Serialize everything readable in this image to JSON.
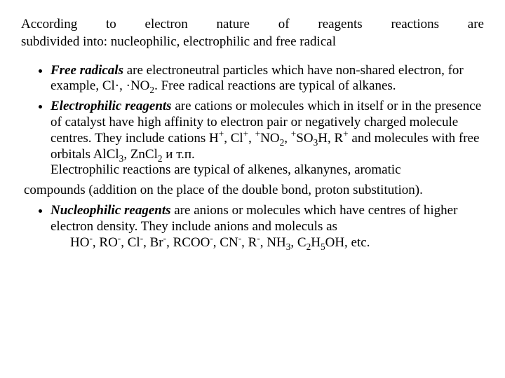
{
  "heading": {
    "line1": "According to electron nature of reagents reactions are",
    "line2": "subdivided into: nucleophilic, electrophilic and free radical"
  },
  "bullets": {
    "free_radicals": {
      "term": "Free radicals",
      "text1": " are electroneutral particles which have non-shared electron, for example, Cl·,  ·NO",
      "sub1": "2",
      "text2": ". Free radical reactions are typical of alkanes."
    },
    "electrophilic": {
      "term": "Electrophilic reagents",
      "text1": " are cations or molecules which in itself or in the presence of catalyst have high affinity to electron pair or negatively charged molecule centres. They include cations H",
      "sup1": "+",
      "text2": ", Cl",
      "sup2": "+",
      "text3": ", ",
      "sup3": "+",
      "text4": "NO",
      "sub1": "2",
      "text5": ", ",
      "sup4": "+",
      "text6": "SO",
      "sub2": "3",
      "text7": "H, R",
      "sup5": "+",
      "text8": " and molecules with free orbitals AlCl",
      "sub3": "3",
      "text9": ", ZnCl",
      "sub4": "2",
      "text10": " и т.п.",
      "line2": "Electrophilic reactions are typical of alkenes, alkanynes, aromatic"
    },
    "electrophilic_cont": "compounds (addition on the place of the double bond, proton substitution).",
    "nucleophilic": {
      "term": "Nucleophilic reagents",
      "text1": " are anions or molecules which have centres of higher electron density. They include anions and moleculs as",
      "line2a": "HO",
      "sup1": "-",
      "line2b": ", RO",
      "sup2": "-",
      "line2c": ", Cl",
      "sup3": "-",
      "line2d": ", Br",
      "sup4": "-",
      "line2e": ", RCOO",
      "sup5": "-",
      "line2f": ", CN",
      "sup6": "-",
      "line2g": ", R",
      "sup7": "-",
      "line2h": ", NH",
      "sub1": "3",
      "line2i": ", C",
      "sub2": "2",
      "line2j": "H",
      "sub3": "5",
      "line2k": "OH, etc."
    }
  }
}
